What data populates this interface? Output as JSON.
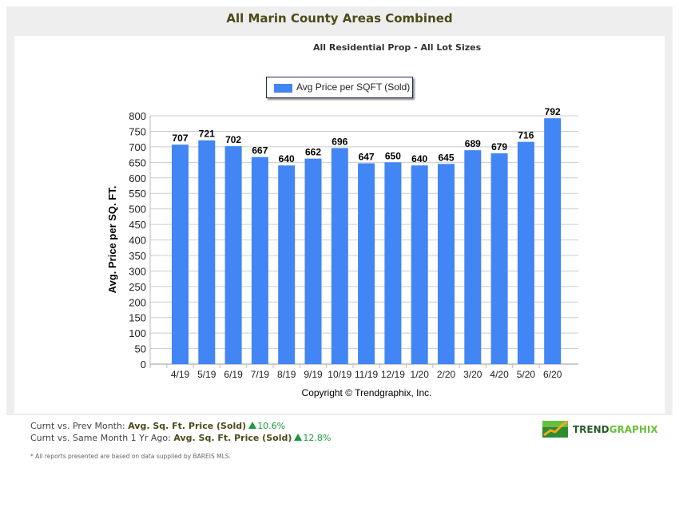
{
  "header": {
    "title": "All Marin County Areas Combined",
    "subtitle": "All Residential Prop - All Lot Sizes"
  },
  "chart_data": {
    "type": "bar",
    "title": "All Residential Prop - All Lot Sizes",
    "categories": [
      "4/19",
      "5/19",
      "6/19",
      "7/19",
      "8/19",
      "9/19",
      "10/19",
      "11/19",
      "12/19",
      "1/20",
      "2/20",
      "3/20",
      "4/20",
      "5/20",
      "6/20"
    ],
    "series": [
      {
        "name": "Avg Price per SQFT (Sold)",
        "values": [
          707,
          721,
          702,
          667,
          640,
          662,
          696,
          647,
          650,
          640,
          645,
          689,
          679,
          716,
          792
        ],
        "color": "#4285f4"
      }
    ],
    "xlabel": "Copyright © Trendgraphix, Inc.",
    "ylabel": "Avg. Price per SQ. FT.",
    "ylim": [
      0,
      800
    ],
    "yticks": [
      0,
      50,
      100,
      150,
      200,
      250,
      300,
      350,
      400,
      450,
      500,
      550,
      600,
      650,
      700,
      750,
      800
    ],
    "grid": true,
    "legend": "top-left"
  },
  "footer": {
    "line1_label": "Curnt vs. Prev Month: ",
    "line1_metric": "Avg. Sq. Ft. Price (Sold)",
    "line1_value": "10.6%",
    "line2_label": "Curnt vs. Same Month 1 Yr Ago: ",
    "line2_metric": "Avg. Sq. Ft. Price (Sold)",
    "line2_value": "12.8%",
    "note": "* All reports presented are based on data supplied by BAREIS MLS.",
    "logo_a": "TREND",
    "logo_b": "GRAPHIX"
  }
}
